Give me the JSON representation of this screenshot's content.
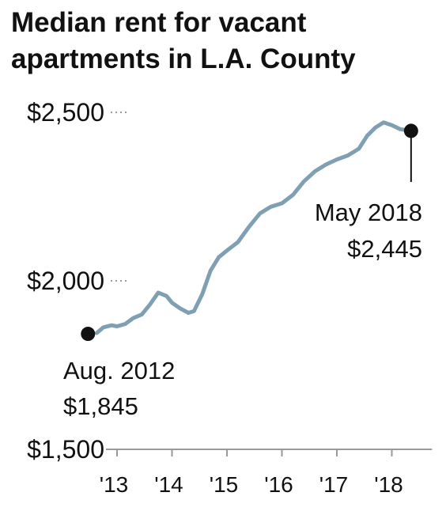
{
  "title": "Median rent for vacant apartments in L.A. County",
  "colors": {
    "line": "#7f9fb3",
    "axis": "#999999",
    "text": "#111111",
    "marker": "#111111"
  },
  "chart_data": {
    "type": "line",
    "title": "Median rent for vacant apartments in L.A. County",
    "xlabel": "",
    "ylabel": "",
    "ylim": [
      1500,
      2500
    ],
    "yticks": [
      {
        "value": 2500,
        "label": "$2,500"
      },
      {
        "value": 2000,
        "label": "$2,000"
      },
      {
        "value": 1500,
        "label": "$1,500"
      }
    ],
    "xticks": [
      {
        "value": 2013,
        "label": "'13"
      },
      {
        "value": 2014,
        "label": "'14"
      },
      {
        "value": 2015,
        "label": "'15"
      },
      {
        "value": 2016,
        "label": "'16"
      },
      {
        "value": 2017,
        "label": "'17"
      },
      {
        "value": 2018,
        "label": "'18"
      }
    ],
    "xlim": [
      2012.6,
      2018.5
    ],
    "grid": false,
    "series": [
      {
        "values": [
          [
            2012.63,
            1845
          ],
          [
            2012.75,
            1862
          ],
          [
            2012.9,
            1868
          ],
          [
            2013.0,
            1865
          ],
          [
            2013.15,
            1872
          ],
          [
            2013.3,
            1890
          ],
          [
            2013.45,
            1900
          ],
          [
            2013.6,
            1930
          ],
          [
            2013.75,
            1965
          ],
          [
            2013.9,
            1955
          ],
          [
            2014.0,
            1935
          ],
          [
            2014.15,
            1918
          ],
          [
            2014.3,
            1905
          ],
          [
            2014.4,
            1910
          ],
          [
            2014.55,
            1960
          ],
          [
            2014.7,
            2030
          ],
          [
            2014.85,
            2070
          ],
          [
            2015.0,
            2090
          ],
          [
            2015.2,
            2115
          ],
          [
            2015.4,
            2160
          ],
          [
            2015.6,
            2200
          ],
          [
            2015.8,
            2220
          ],
          [
            2016.0,
            2230
          ],
          [
            2016.2,
            2255
          ],
          [
            2016.4,
            2295
          ],
          [
            2016.6,
            2325
          ],
          [
            2016.8,
            2345
          ],
          [
            2017.0,
            2360
          ],
          [
            2017.2,
            2372
          ],
          [
            2017.4,
            2392
          ],
          [
            2017.55,
            2430
          ],
          [
            2017.7,
            2455
          ],
          [
            2017.85,
            2470
          ],
          [
            2018.0,
            2462
          ],
          [
            2018.15,
            2450
          ],
          [
            2018.35,
            2445
          ]
        ]
      }
    ],
    "annotations": [
      {
        "x": 2012.63,
        "y": 1845,
        "line1": "Aug. 2012",
        "line2": "$1,845"
      },
      {
        "x": 2018.35,
        "y": 2445,
        "line1": "May 2018",
        "line2": "$2,445"
      }
    ]
  }
}
